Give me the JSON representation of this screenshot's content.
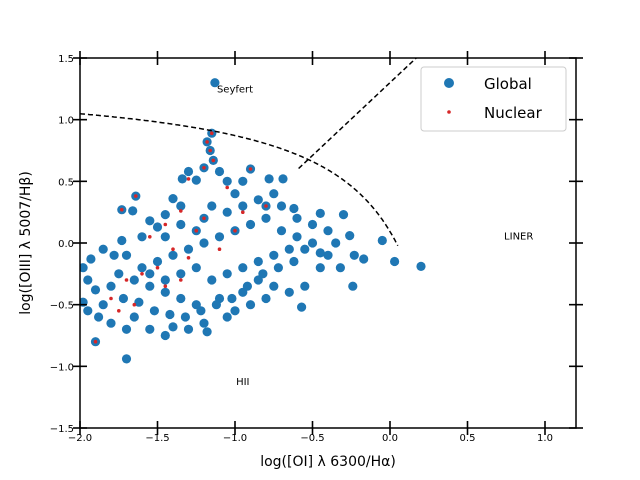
{
  "chart_data": {
    "type": "scatter",
    "xlabel": "log([OI] λ 6300/Hα)",
    "ylabel": "log([OIII] λ 5007/Hβ)",
    "xlim": [
      -2.0,
      1.2
    ],
    "ylim": [
      -1.5,
      1.5
    ],
    "xticks": [
      -2.0,
      -1.5,
      -1.0,
      -0.5,
      0.0,
      0.5,
      1.0
    ],
    "xtick_labels": [
      "−2.0",
      "−1.5",
      "−1.0",
      "−0.5",
      "0.0",
      "0.5",
      "1.0"
    ],
    "yticks": [
      -1.5,
      -1.0,
      -0.5,
      0.0,
      0.5,
      1.0,
      1.5
    ],
    "ytick_labels": [
      "−1.5",
      "−1.0",
      "−0.5",
      "0.0",
      "0.5",
      "1.0",
      "1.5"
    ],
    "grid": false,
    "legend_position": "top-right",
    "region_labels": [
      {
        "text": "Seyfert",
        "x": -1.0,
        "y": 1.22
      },
      {
        "text": "LINER",
        "x": 0.83,
        "y": 0.03
      },
      {
        "text": "HII",
        "x": -0.95,
        "y": -1.15
      }
    ],
    "boundary_curves": [
      {
        "kind": "hii-agn-curve",
        "color": "#000000"
      },
      {
        "kind": "seyfert-liner-line",
        "color": "#000000"
      }
    ],
    "series": [
      {
        "name": "Global",
        "marker": "large-circle",
        "color": "#1f77b4",
        "points": [
          [
            -1.13,
            1.3
          ],
          [
            -1.15,
            0.89
          ],
          [
            -1.18,
            0.82
          ],
          [
            -1.16,
            0.75
          ],
          [
            -1.14,
            0.67
          ],
          [
            -1.2,
            0.61
          ],
          [
            -1.1,
            0.58
          ],
          [
            -0.9,
            0.6
          ],
          [
            -1.3,
            0.58
          ],
          [
            -1.34,
            0.52
          ],
          [
            -1.25,
            0.51
          ],
          [
            -1.05,
            0.5
          ],
          [
            -0.95,
            0.5
          ],
          [
            -0.78,
            0.52
          ],
          [
            -0.69,
            0.52
          ],
          [
            -1.64,
            0.38
          ],
          [
            -1.4,
            0.36
          ],
          [
            -1.0,
            0.4
          ],
          [
            -1.73,
            0.27
          ],
          [
            -1.66,
            0.26
          ],
          [
            -1.55,
            0.18
          ],
          [
            -1.5,
            0.13
          ],
          [
            -1.45,
            0.23
          ],
          [
            -1.35,
            0.3
          ],
          [
            -1.2,
            0.2
          ],
          [
            -0.8,
            0.3
          ],
          [
            -0.7,
            0.3
          ],
          [
            -0.62,
            0.28
          ],
          [
            -0.6,
            0.2
          ],
          [
            -0.5,
            0.15
          ],
          [
            -0.45,
            0.24
          ],
          [
            -0.4,
            0.1
          ],
          [
            -0.3,
            0.23
          ],
          [
            -0.26,
            0.06
          ],
          [
            -0.23,
            -0.1
          ],
          [
            -0.17,
            -0.13
          ],
          [
            -0.05,
            0.02
          ],
          [
            0.03,
            -0.15
          ],
          [
            0.2,
            -0.19
          ],
          [
            -0.24,
            -0.35
          ],
          [
            -0.4,
            -0.1
          ],
          [
            -0.45,
            -0.2
          ],
          [
            -0.55,
            -0.35
          ],
          [
            -0.57,
            -0.52
          ],
          [
            -0.65,
            -0.4
          ],
          [
            -1.73,
            0.02
          ],
          [
            -1.78,
            -0.1
          ],
          [
            -1.85,
            -0.05
          ],
          [
            -1.93,
            -0.13
          ],
          [
            -1.98,
            -0.2
          ],
          [
            -1.95,
            -0.3
          ],
          [
            -1.9,
            -0.38
          ],
          [
            -1.98,
            -0.48
          ],
          [
            -1.95,
            -0.55
          ],
          [
            -1.88,
            -0.6
          ],
          [
            -1.8,
            -0.65
          ],
          [
            -1.7,
            -0.7
          ],
          [
            -1.65,
            -0.6
          ],
          [
            -1.9,
            -0.8
          ],
          [
            -1.7,
            -0.94
          ],
          [
            -1.55,
            -0.7
          ],
          [
            -1.45,
            -0.75
          ],
          [
            -1.4,
            -0.68
          ],
          [
            -1.3,
            -0.7
          ],
          [
            -1.2,
            -0.65
          ],
          [
            -1.18,
            -0.72
          ],
          [
            -1.05,
            -0.6
          ],
          [
            -1.0,
            -0.55
          ],
          [
            -0.9,
            -0.5
          ],
          [
            -0.8,
            -0.45
          ],
          [
            -0.75,
            -0.35
          ],
          [
            -0.85,
            -0.3
          ],
          [
            -0.95,
            -0.4
          ],
          [
            -1.1,
            -0.45
          ],
          [
            -1.25,
            -0.5
          ],
          [
            -1.35,
            -0.45
          ],
          [
            -1.45,
            -0.4
          ],
          [
            -1.55,
            -0.35
          ],
          [
            -1.65,
            -0.3
          ],
          [
            -1.75,
            -0.25
          ],
          [
            -1.6,
            -0.2
          ],
          [
            -1.5,
            -0.15
          ],
          [
            -1.4,
            -0.1
          ],
          [
            -1.3,
            -0.05
          ],
          [
            -1.2,
            0.0
          ],
          [
            -1.1,
            0.05
          ],
          [
            -1.0,
            0.1
          ],
          [
            -0.9,
            0.15
          ],
          [
            -0.8,
            0.2
          ],
          [
            -0.7,
            0.1
          ],
          [
            -0.6,
            0.05
          ],
          [
            -0.65,
            -0.05
          ],
          [
            -0.75,
            -0.1
          ],
          [
            -0.85,
            -0.15
          ],
          [
            -0.95,
            -0.2
          ],
          [
            -1.05,
            -0.25
          ],
          [
            -1.15,
            -0.3
          ],
          [
            -1.25,
            -0.2
          ],
          [
            -1.35,
            -0.25
          ],
          [
            -1.45,
            -0.3
          ],
          [
            -1.55,
            -0.25
          ],
          [
            -1.25,
            0.1
          ],
          [
            -1.35,
            0.15
          ],
          [
            -1.45,
            0.05
          ],
          [
            -1.15,
            0.3
          ],
          [
            -1.05,
            0.25
          ],
          [
            -0.95,
            0.3
          ],
          [
            -0.85,
            0.35
          ],
          [
            -0.75,
            0.4
          ],
          [
            -1.6,
            0.05
          ],
          [
            -1.7,
            -0.1
          ],
          [
            -1.8,
            -0.35
          ],
          [
            -1.85,
            -0.5
          ],
          [
            -1.72,
            -0.45
          ],
          [
            -1.62,
            -0.48
          ],
          [
            -1.52,
            -0.55
          ],
          [
            -1.42,
            -0.58
          ],
          [
            -1.32,
            -0.6
          ],
          [
            -1.22,
            -0.55
          ],
          [
            -1.12,
            -0.5
          ],
          [
            -1.02,
            -0.45
          ],
          [
            -0.92,
            -0.35
          ],
          [
            -0.82,
            -0.25
          ],
          [
            -0.72,
            -0.2
          ],
          [
            -0.62,
            -0.15
          ],
          [
            -0.55,
            -0.05
          ],
          [
            -0.5,
            0.0
          ],
          [
            -0.45,
            -0.08
          ],
          [
            -0.35,
            0.0
          ],
          [
            -0.32,
            -0.2
          ]
        ]
      },
      {
        "name": "Nuclear",
        "marker": "small-dot",
        "color": "#d62728",
        "points": [
          [
            -1.15,
            0.89
          ],
          [
            -1.18,
            0.82
          ],
          [
            -1.16,
            0.75
          ],
          [
            -1.14,
            0.67
          ],
          [
            -1.2,
            0.61
          ],
          [
            -0.9,
            0.6
          ],
          [
            -1.3,
            0.52
          ],
          [
            -1.05,
            0.45
          ],
          [
            -1.64,
            0.38
          ],
          [
            -1.73,
            0.27
          ],
          [
            -1.35,
            0.26
          ],
          [
            -1.2,
            0.2
          ],
          [
            -1.45,
            0.15
          ],
          [
            -1.25,
            0.1
          ],
          [
            -1.55,
            0.05
          ],
          [
            -1.4,
            -0.05
          ],
          [
            -1.3,
            -0.12
          ],
          [
            -1.5,
            -0.2
          ],
          [
            -1.6,
            -0.25
          ],
          [
            -1.7,
            -0.3
          ],
          [
            -1.8,
            -0.45
          ],
          [
            -1.75,
            -0.55
          ],
          [
            -1.65,
            -0.5
          ],
          [
            -1.9,
            -0.8
          ],
          [
            -1.45,
            -0.35
          ],
          [
            -1.35,
            -0.3
          ],
          [
            -1.1,
            -0.05
          ],
          [
            -1.0,
            0.1
          ],
          [
            -0.95,
            0.25
          ],
          [
            -0.8,
            0.3
          ]
        ]
      }
    ]
  }
}
